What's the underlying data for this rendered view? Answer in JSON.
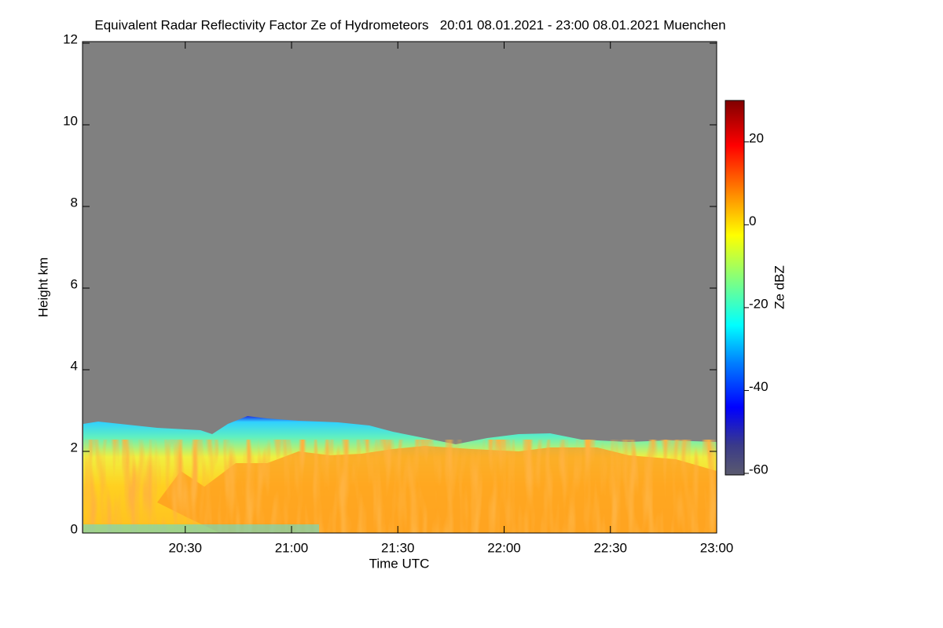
{
  "chart_data": {
    "type": "heatmap",
    "title": "Equivalent Radar Reflectivity Factor Ze of Hydrometeors   20:01 08.01.2021 - 23:00 08.01.2021 Muenchen",
    "xlabel": "Time UTC",
    "ylabel": "Height km",
    "xlim": [
      1201,
      1380
    ],
    "xticks": [
      {
        "value": 1230,
        "label": "20:30"
      },
      {
        "value": 1260,
        "label": "21:00"
      },
      {
        "value": 1290,
        "label": "21:30"
      },
      {
        "value": 1320,
        "label": "22:00"
      },
      {
        "value": 1350,
        "label": "22:30"
      },
      {
        "value": 1380,
        "label": "23:00"
      }
    ],
    "ylim": [
      0,
      12
    ],
    "yticks": [
      0,
      2,
      4,
      6,
      8,
      10,
      12
    ],
    "colorbar_label": "Ze dBZ",
    "clim": [
      -60,
      30
    ],
    "cticks": [
      -60,
      -40,
      -20,
      0,
      20
    ]
  }
}
